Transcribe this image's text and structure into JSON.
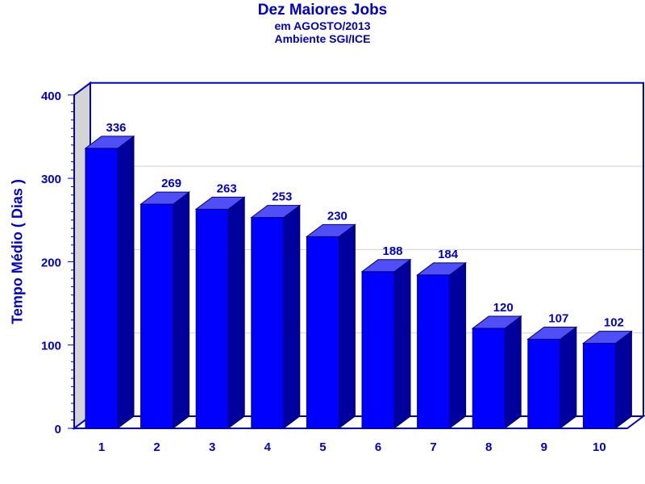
{
  "chart_data": {
    "type": "bar",
    "title": "Dez Maiores Jobs",
    "subtitle": [
      "em AGOSTO/2013",
      "Ambiente SGI/ICE"
    ],
    "xlabel": "",
    "ylabel": "Tempo Médio ( Dias )",
    "categories": [
      "1",
      "2",
      "3",
      "4",
      "5",
      "6",
      "7",
      "8",
      "9",
      "10"
    ],
    "values": [
      336,
      269,
      263,
      253,
      230,
      188,
      184,
      120,
      107,
      102
    ],
    "ylim": [
      0,
      400
    ],
    "yticks": [
      0,
      100,
      200,
      300,
      400
    ],
    "grid": true,
    "legend": "none",
    "colors": {
      "bar_front": "#0000ff",
      "bar_top": "#4f4ff5",
      "bar_side": "#00009c",
      "axis": "#0000cc",
      "text": "#0000cc",
      "wall": "#d4d4d4",
      "grid": "#d0d0d0"
    }
  }
}
